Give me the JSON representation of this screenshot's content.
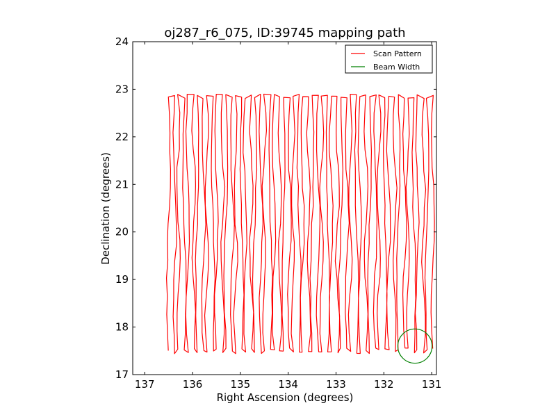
{
  "chart_data": {
    "type": "line",
    "title": "oj287_r6_075, ID:39745 mapping path",
    "xlabel": "Right Ascension (degrees)",
    "ylabel": "Declination (degrees)",
    "xlim": [
      137.25,
      130.9
    ],
    "ylim": [
      17,
      24
    ],
    "x_inverted": true,
    "xticks": [
      137,
      136,
      135,
      134,
      133,
      132,
      131
    ],
    "xtick_labels": [
      "137",
      "136",
      "135",
      "134",
      "133",
      "132",
      "131"
    ],
    "yticks": [
      17,
      18,
      19,
      20,
      21,
      22,
      23,
      24
    ],
    "ytick_labels": [
      "17",
      "18",
      "19",
      "20",
      "21",
      "22",
      "23",
      "24"
    ],
    "grid": false,
    "legend_position": "top-right",
    "series": [
      {
        "name": "Scan Pattern",
        "color": "#ff0000",
        "style": "zigzag",
        "ra_start": 136.5,
        "ra_end": 131.0,
        "dec_min": 17.5,
        "dec_max": 22.85,
        "num_sweeps": 56
      },
      {
        "name": "Beam Width",
        "color": "#008000",
        "style": "circle",
        "center": [
          131.35,
          17.6
        ],
        "radius_dec": 0.36
      }
    ]
  }
}
